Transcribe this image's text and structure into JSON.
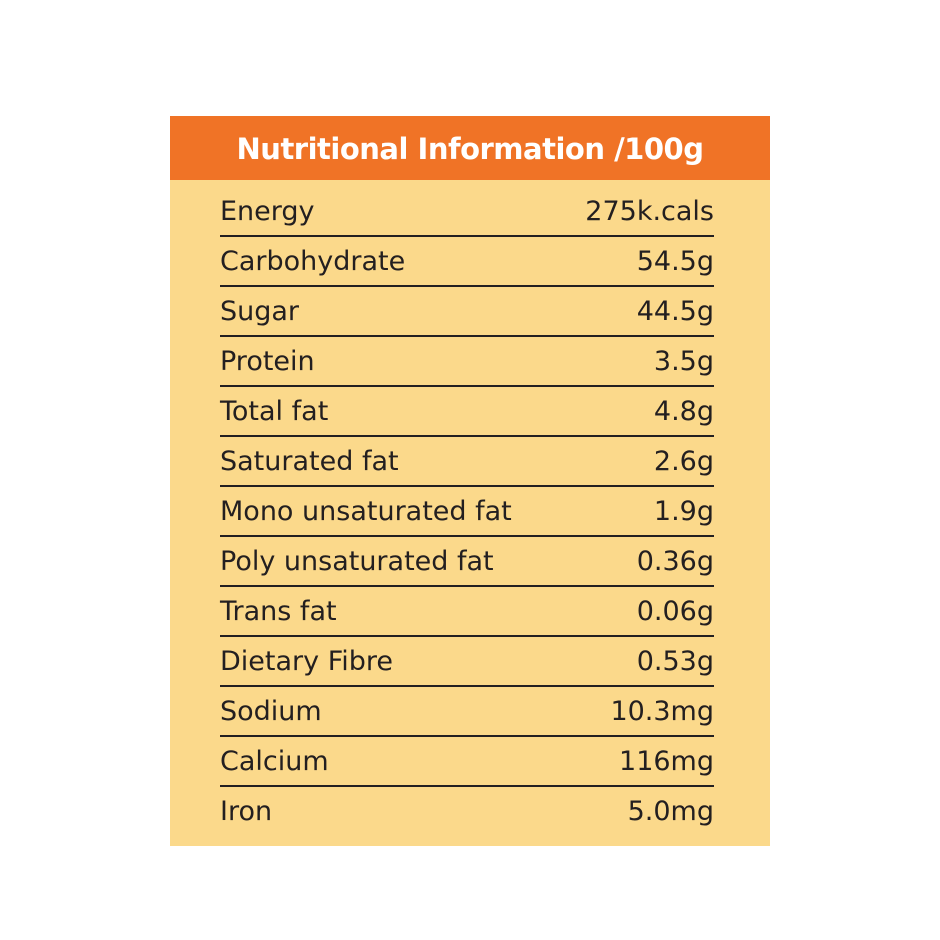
{
  "table": {
    "title": "Nutritional Information /100g",
    "rows": [
      [
        "Energy",
        "275k.cals"
      ],
      [
        "Carbohydrate",
        "54.5g"
      ],
      [
        "Sugar",
        "44.5g"
      ],
      [
        "Protein",
        "3.5g"
      ],
      [
        "Total fat",
        "4.8g"
      ],
      [
        "Saturated fat",
        "2.6g"
      ],
      [
        "Mono unsaturated fat",
        "1.9g"
      ],
      [
        "Poly unsaturated fat",
        "0.36g"
      ],
      [
        "Trans fat",
        "0.06g"
      ],
      [
        "Dietary Fibre",
        "0.53g"
      ],
      [
        "Sodium",
        "10.3mg"
      ],
      [
        "Calcium",
        "116mg"
      ],
      [
        "Iron",
        "5.0mg"
      ]
    ]
  }
}
